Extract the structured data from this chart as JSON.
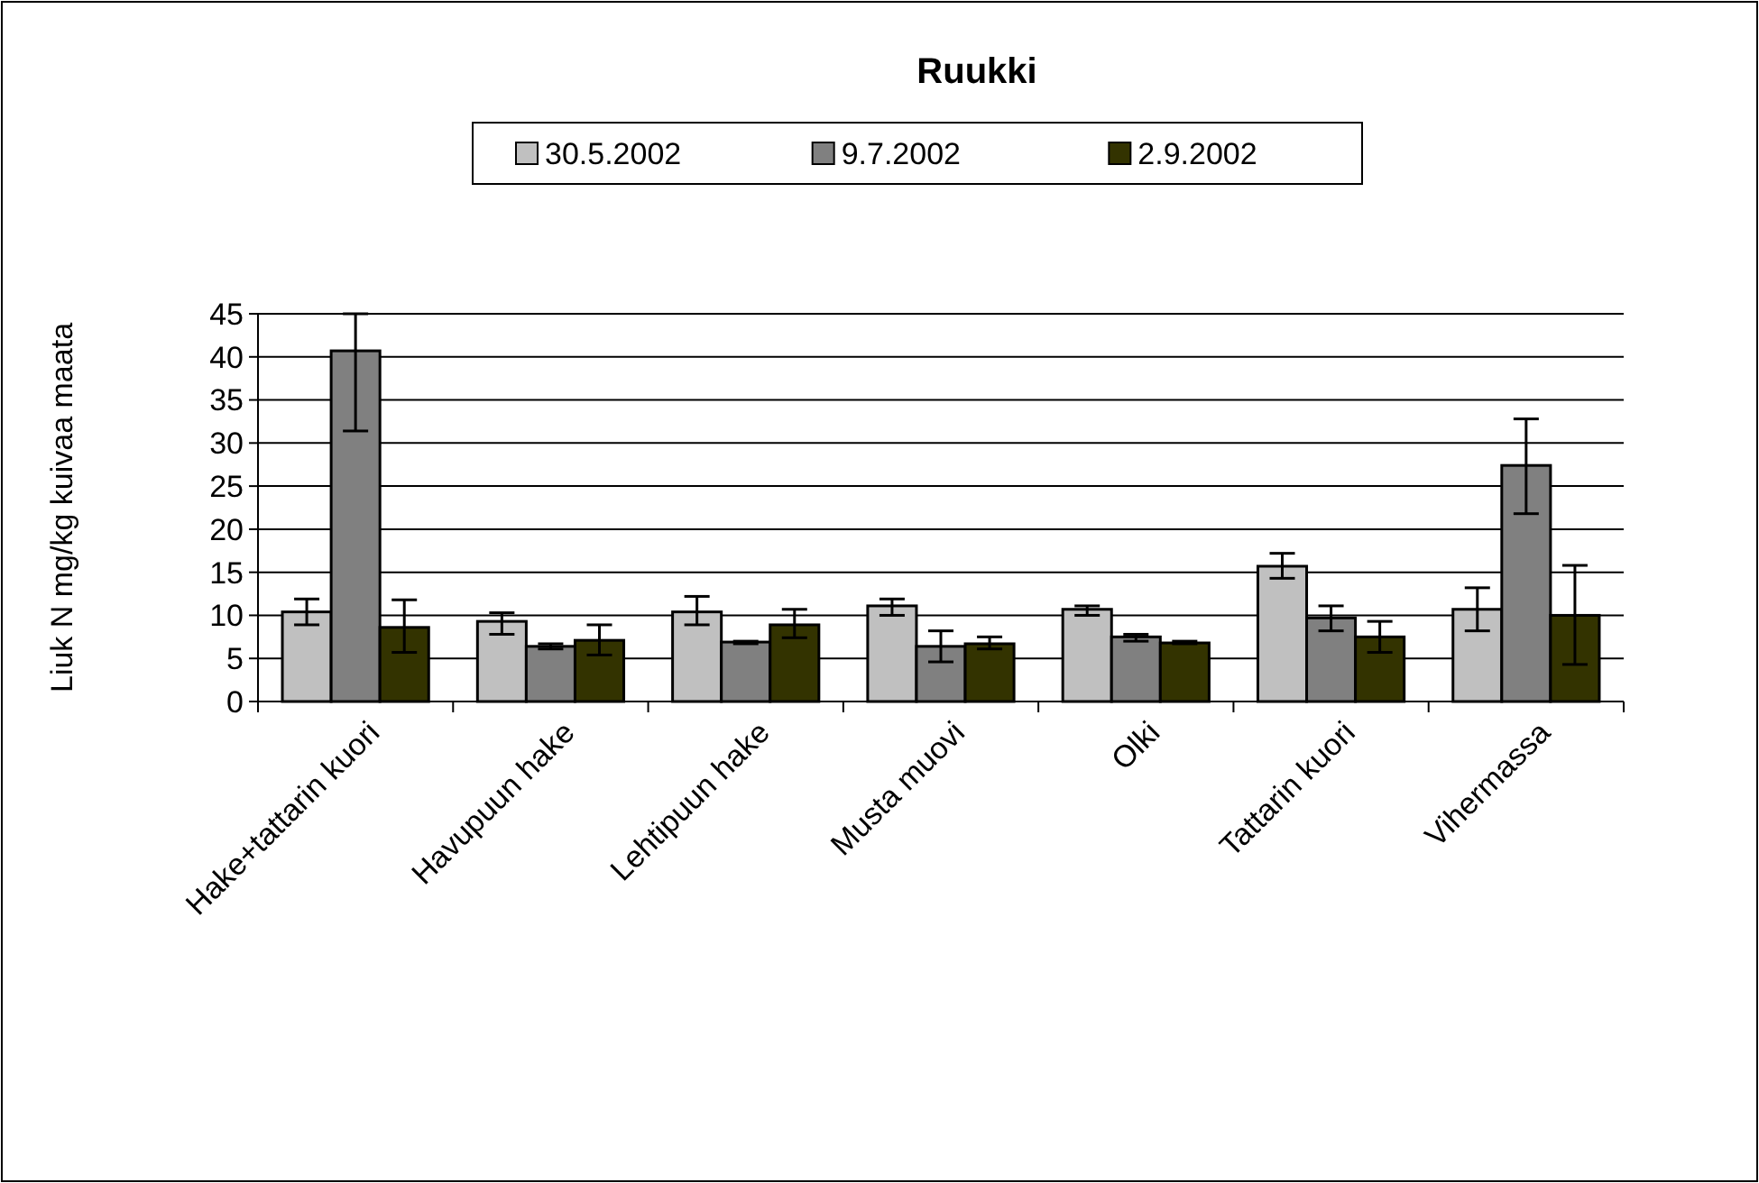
{
  "chart_data": {
    "type": "bar",
    "title": "Ruukki",
    "ylabel": "Liuk N mg/kg kuivaa maata",
    "categories": [
      "Hake+tattarin kuori",
      "Havupuun hake",
      "Lehtipuun hake",
      "Musta muovi",
      "Olki",
      "Tattarin kuori",
      "Vihermassa"
    ],
    "series": [
      {
        "name": "30.5.2002",
        "color": "#c0c0c0",
        "values": [
          10.4,
          9.3,
          10.4,
          11.1,
          10.7,
          15.7,
          10.7
        ],
        "errors": [
          [
            8.9,
            11.9
          ],
          [
            7.8,
            10.3
          ],
          [
            8.9,
            12.2
          ],
          [
            10.0,
            11.9
          ],
          [
            10.0,
            11.1
          ],
          [
            14.3,
            17.2
          ],
          [
            8.2,
            13.2
          ]
        ]
      },
      {
        "name": "9.7.2002",
        "color": "#808080",
        "values": [
          40.7,
          6.4,
          6.9,
          6.4,
          7.5,
          9.7,
          27.4
        ],
        "errors": [
          [
            31.4,
            45
          ],
          [
            6.1,
            6.7
          ],
          [
            6.7,
            7.0
          ],
          [
            4.6,
            8.2
          ],
          [
            7.0,
            7.8
          ],
          [
            8.2,
            11.1
          ],
          [
            21.8,
            32.8
          ]
        ]
      },
      {
        "name": "2.9.2002",
        "color": "#333300",
        "values": [
          8.6,
          7.1,
          8.9,
          6.7,
          6.8,
          7.5,
          10.0
        ],
        "errors": [
          [
            5.7,
            11.8
          ],
          [
            5.4,
            8.9
          ],
          [
            7.4,
            10.7
          ],
          [
            6.1,
            7.5
          ],
          [
            6.7,
            7.0
          ],
          [
            5.7,
            9.3
          ],
          [
            4.3,
            15.8
          ]
        ]
      }
    ],
    "ylim": [
      0,
      45
    ],
    "yticks": [
      0,
      5,
      10,
      15,
      20,
      25,
      30,
      35,
      40,
      45
    ],
    "grid": "y",
    "legend": "top"
  }
}
